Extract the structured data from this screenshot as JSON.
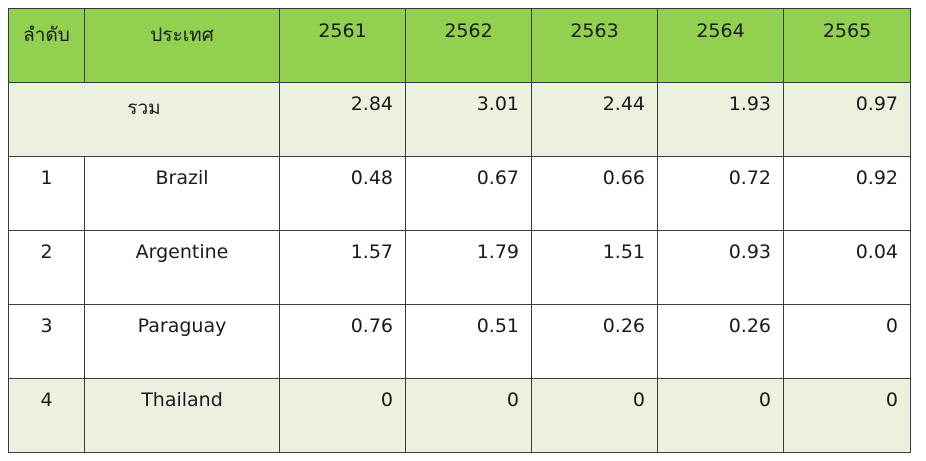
{
  "table": {
    "headers": [
      "ลำดับ",
      "ประเทศ",
      "2561",
      "2562",
      "2563",
      "2564",
      "2565"
    ],
    "total": {
      "label": "รวม",
      "values": [
        "2.84",
        "3.01",
        "2.44",
        "1.93",
        "0.97"
      ]
    },
    "rows": [
      {
        "rank": "1",
        "country": "Brazil",
        "values": [
          "0.48",
          "0.67",
          "0.66",
          "0.72",
          "0.92"
        ]
      },
      {
        "rank": "2",
        "country": "Argentine",
        "values": [
          "1.57",
          "1.79",
          "1.51",
          "0.93",
          "0.04"
        ]
      },
      {
        "rank": "3",
        "country": "Paraguay",
        "values": [
          "0.76",
          "0.51",
          "0.26",
          "0.26",
          "0"
        ]
      },
      {
        "rank": "4",
        "country": "Thailand",
        "values": [
          "0",
          "0",
          "0",
          "0",
          "0"
        ]
      }
    ]
  },
  "colors": {
    "header_bg": "#92d050",
    "highlight_bg": "#ebf1de",
    "border": "#3c3c3c"
  }
}
